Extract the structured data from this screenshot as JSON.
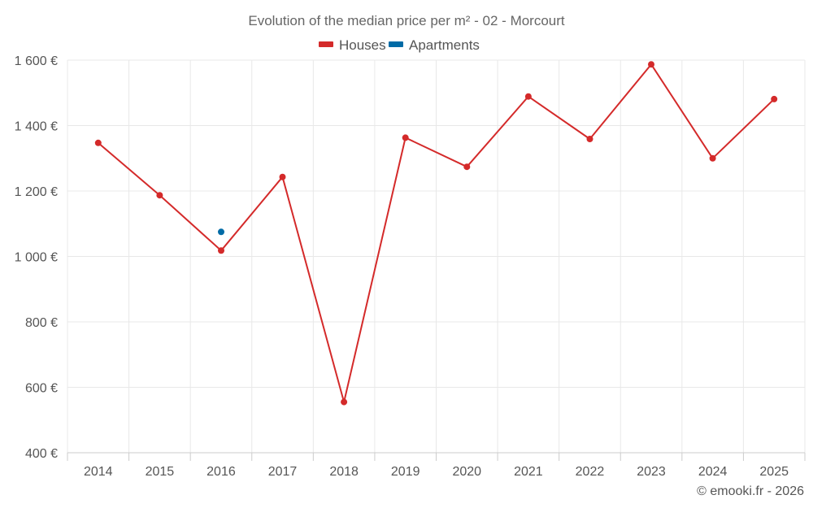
{
  "chart_data": {
    "type": "line",
    "title": "Evolution of the median price per m² - 02 - Morcourt",
    "categories": [
      "2014",
      "2015",
      "2016",
      "2017",
      "2018",
      "2019",
      "2020",
      "2021",
      "2022",
      "2023",
      "2024",
      "2025"
    ],
    "series": [
      {
        "name": "Houses",
        "color": "#d42a2a",
        "values": [
          1347,
          1187,
          1018,
          1243,
          555,
          1363,
          1274,
          1489,
          1359,
          1587,
          1300,
          1481
        ]
      },
      {
        "name": "Apartments",
        "color": "#006ba6",
        "values": [
          null,
          null,
          1075,
          null,
          null,
          null,
          null,
          null,
          null,
          null,
          null,
          null
        ]
      }
    ],
    "y_ticks": [
      400,
      600,
      800,
      1000,
      1200,
      1400,
      1600
    ],
    "y_tick_labels": [
      "400 €",
      "600 €",
      "800 €",
      "1 000 €",
      "1 200 €",
      "1 400 €",
      "1 600 €"
    ],
    "ylim": [
      400,
      1600
    ],
    "xlabel": "",
    "ylabel": "",
    "legend_position": "top-center",
    "grid": true
  },
  "credit": "© emooki.fr - 2026"
}
